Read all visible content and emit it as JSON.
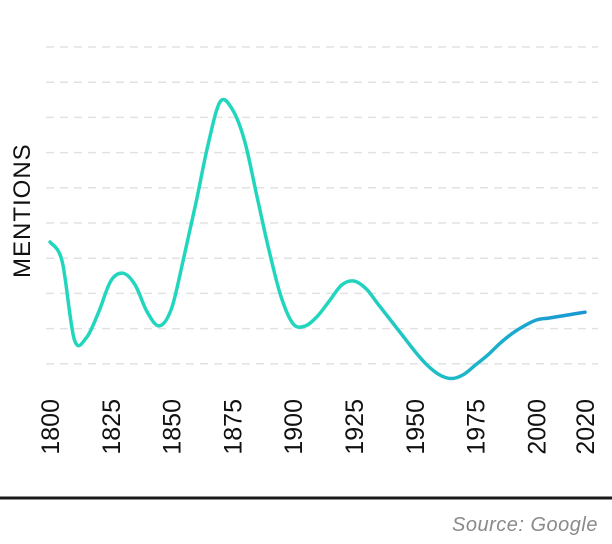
{
  "chart_data": {
    "type": "line",
    "title": "",
    "xlabel": "",
    "ylabel": "MENTIONS",
    "x": [
      1800,
      1805,
      1810,
      1815,
      1820,
      1825,
      1830,
      1835,
      1840,
      1845,
      1850,
      1855,
      1860,
      1865,
      1870,
      1875,
      1880,
      1885,
      1890,
      1895,
      1900,
      1905,
      1910,
      1915,
      1920,
      1925,
      1930,
      1935,
      1940,
      1945,
      1950,
      1955,
      1960,
      1965,
      1970,
      1975,
      1980,
      1985,
      1990,
      1995,
      2000,
      2005,
      2010,
      2015,
      2020
    ],
    "series": [
      {
        "values": [
          4.0,
          3.5,
          1.5,
          1.55,
          2.2,
          3.0,
          3.2,
          2.9,
          2.2,
          1.85,
          2.3,
          3.6,
          5.0,
          6.5,
          7.6,
          7.4,
          6.6,
          5.2,
          3.8,
          2.6,
          1.9,
          1.85,
          2.1,
          2.5,
          2.9,
          3.0,
          2.8,
          2.4,
          2.0,
          1.6,
          1.2,
          0.85,
          0.6,
          0.5,
          0.6,
          0.85,
          1.1,
          1.4,
          1.65,
          1.85,
          2.0,
          2.05,
          2.1,
          2.15,
          2.2
        ]
      }
    ],
    "xticks": [
      "1800",
      "1825",
      "1850",
      "1875",
      "1900",
      "1925",
      "1950",
      "1975",
      "2000",
      "2020"
    ],
    "xlim": [
      1800,
      2020
    ],
    "ylim": [
      0,
      9
    ],
    "grid": true,
    "colors": {
      "start": "#22d6be",
      "end": "#1a96d4",
      "grid": "#e2e2e2",
      "axis": "#111111"
    }
  },
  "source": "Source: Google"
}
